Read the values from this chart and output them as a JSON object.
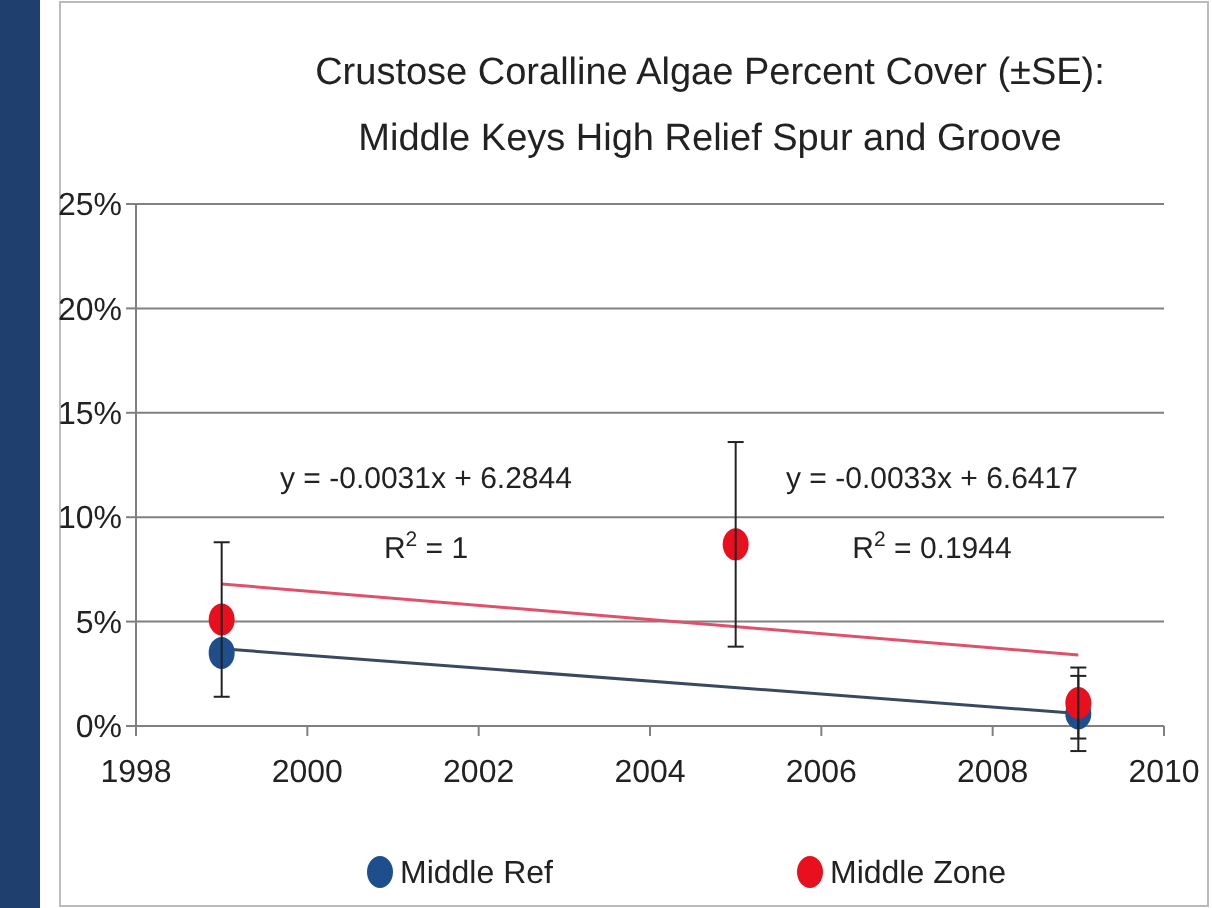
{
  "chart_data": {
    "type": "scatter",
    "title": "Crustose Coralline Algae Percent Cover (±SE):\nMiddle Keys High Relief Spur and Groove",
    "xlim": [
      1998,
      2010
    ],
    "xticks": [
      1998,
      2000,
      2002,
      2004,
      2006,
      2008,
      2010
    ],
    "ylim": [
      0,
      25
    ],
    "yticks": [
      {
        "value": 0,
        "label": "0%"
      },
      {
        "value": 5,
        "label": "5%"
      },
      {
        "value": 10,
        "label": "10%"
      },
      {
        "value": 15,
        "label": "15%"
      },
      {
        "value": 20,
        "label": "20%"
      },
      {
        "value": 25,
        "label": "25%"
      }
    ],
    "grid": "y",
    "legend": "bottom",
    "marker": "circle",
    "annotations": [
      "y = -0.0031x + 6.2844",
      "R$^{2}$ = 1",
      "y = -0.0033x + 6.6417",
      "R$^{2}$ = 0.1944"
    ],
    "series": [
      {
        "type": "line",
        "color": "#3a4a5e",
        "x": [
          1999,
          2009
        ],
        "values": [
          3.7,
          0.6
        ],
        "marker": "none"
      },
      {
        "type": "line",
        "color": "#e0506a",
        "x": [
          1999,
          2009
        ],
        "values": [
          6.8,
          3.4
        ],
        "marker": "none"
      },
      {
        "name": "Middle Ref",
        "color": "#1f4e8c",
        "x": [
          1999,
          2009
        ],
        "values": [
          3.5,
          0.6
        ],
        "errors": [
          null,
          1.8
        ]
      },
      {
        "name": "Middle Zone",
        "color": "#e8101e",
        "x": [
          1999,
          2005,
          2009
        ],
        "values": [
          5.1,
          8.7,
          1.1
        ],
        "errors": [
          3.7,
          4.9,
          1.7
        ]
      }
    ]
  }
}
